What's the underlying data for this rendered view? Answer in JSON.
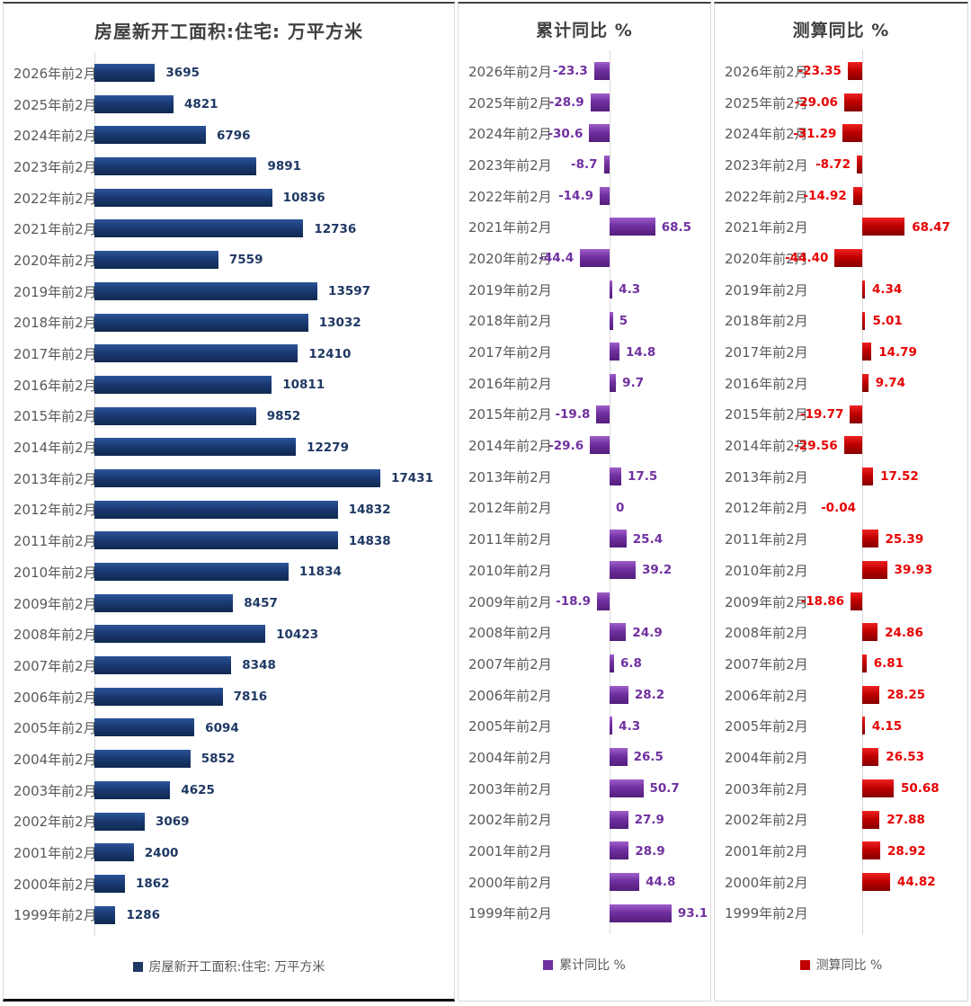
{
  "chart_data": [
    {
      "type": "bar",
      "orientation": "horizontal",
      "title": "房屋新开工面积:住宅: 万平方米",
      "legend": "房屋新开工面积:住宅: 万平方米",
      "categories": [
        "2026年前2月",
        "2025年前2月",
        "2024年前2月",
        "2023年前2月",
        "2022年前2月",
        "2021年前2月",
        "2020年前2月",
        "2019年前2月",
        "2018年前2月",
        "2017年前2月",
        "2016年前2月",
        "2015年前2月",
        "2014年前2月",
        "2013年前2月",
        "2012年前2月",
        "2011年前2月",
        "2010年前2月",
        "2009年前2月",
        "2008年前2月",
        "2007年前2月",
        "2006年前2月",
        "2005年前2月",
        "2004年前2月",
        "2003年前2月",
        "2002年前2月",
        "2001年前2月",
        "2000年前2月",
        "1999年前2月"
      ],
      "values": [
        3695,
        4821,
        6796,
        9891,
        10836,
        12736,
        7559,
        13597,
        13032,
        12410,
        10811,
        9852,
        12279,
        17431,
        14832,
        14838,
        11834,
        8457,
        10423,
        8348,
        7816,
        6094,
        5852,
        4625,
        3069,
        2400,
        1862,
        1286
      ],
      "labels": [
        "3695",
        "4821",
        "6796",
        "9891",
        "10836",
        "12736",
        "7559",
        "13597",
        "13032",
        "12410",
        "10811",
        "9852",
        "12279",
        "17431",
        "14832",
        "14838",
        "11834",
        "8457",
        "10423",
        "8348",
        "7816",
        "6094",
        "5852",
        "4625",
        "3069",
        "2400",
        "1862",
        "1286"
      ],
      "xlim": [
        0,
        19000
      ],
      "grid": false,
      "legend_position": "bottom",
      "colors": {
        "bar_light": "#2c5499",
        "bar": "#1a3a74",
        "bar_dark": "#10294f",
        "value_label": "#1f3864",
        "swatch": "#1f3864"
      }
    },
    {
      "type": "bar",
      "orientation": "horizontal",
      "title": "累计同比 %",
      "legend": "累计同比 %",
      "categories": [
        "2026年前2月",
        "2025年前2月",
        "2024年前2月",
        "2023年前2月",
        "2022年前2月",
        "2021年前2月",
        "2020年前2月",
        "2019年前2月",
        "2018年前2月",
        "2017年前2月",
        "2016年前2月",
        "2015年前2月",
        "2014年前2月",
        "2013年前2月",
        "2012年前2月",
        "2011年前2月",
        "2010年前2月",
        "2009年前2月",
        "2008年前2月",
        "2007年前2月",
        "2006年前2月",
        "2005年前2月",
        "2004年前2月",
        "2003年前2月",
        "2002年前2月",
        "2001年前2月",
        "2000年前2月",
        "1999年前2月"
      ],
      "values": [
        -23.3,
        -28.9,
        -30.6,
        -8.7,
        -14.9,
        68.5,
        -44.4,
        4.3,
        5,
        14.8,
        9.7,
        -19.8,
        -29.6,
        17.5,
        0,
        25.4,
        39.2,
        -18.9,
        24.9,
        6.8,
        28.2,
        4.3,
        26.5,
        50.7,
        27.9,
        28.9,
        44.8,
        93.1
      ],
      "labels": [
        "-23.3",
        "-28.9",
        "-30.6",
        "-8.7",
        "-14.9",
        "68.5",
        "-44.4",
        "4.3",
        "5",
        "14.8",
        "9.7",
        "-19.8",
        "-29.6",
        "17.5",
        "0",
        "25.4",
        "39.2",
        "-18.9",
        "24.9",
        "6.8",
        "28.2",
        "4.3",
        "26.5",
        "50.7",
        "27.9",
        "28.9",
        "44.8",
        "93.1"
      ],
      "xlim": [
        -90,
        150
      ],
      "grid": false,
      "legend_position": "bottom",
      "colors": {
        "bar_light": "#a05fc9",
        "bar": "#7030a0",
        "bar_dark": "#531e7b",
        "value_label": "#7030a0",
        "swatch": "#7030a0"
      }
    },
    {
      "type": "bar",
      "orientation": "horizontal",
      "title": "测算同比 %",
      "legend": "测算同比 %",
      "categories": [
        "2026年前2月",
        "2025年前2月",
        "2024年前2月",
        "2023年前2月",
        "2022年前2月",
        "2021年前2月",
        "2020年前2月",
        "2019年前2月",
        "2018年前2月",
        "2017年前2月",
        "2016年前2月",
        "2015年前2月",
        "2014年前2月",
        "2013年前2月",
        "2012年前2月",
        "2011年前2月",
        "2010年前2月",
        "2009年前2月",
        "2008年前2月",
        "2007年前2月",
        "2006年前2月",
        "2005年前2月",
        "2004年前2月",
        "2003年前2月",
        "2002年前2月",
        "2001年前2月",
        "2000年前2月",
        "1999年前2月"
      ],
      "values": [
        -23.35,
        -29.06,
        -31.29,
        -8.72,
        -14.92,
        68.47,
        -44.4,
        4.34,
        5.01,
        14.79,
        9.74,
        -19.77,
        -29.56,
        17.52,
        -0.04,
        25.39,
        39.93,
        -18.86,
        24.86,
        6.81,
        28.25,
        4.15,
        26.53,
        50.68,
        27.88,
        28.92,
        44.82,
        null
      ],
      "labels": [
        "-23.35",
        "-29.06",
        "-31.29",
        "-8.72",
        "-14.92",
        "68.47",
        "-44.40",
        "4.34",
        "5.01",
        "14.79",
        "9.74",
        "-19.77",
        "-29.56",
        "17.52",
        "-0.04",
        "25.39",
        "39.93",
        "-18.86",
        "24.86",
        "6.81",
        "28.25",
        "4.15",
        "26.53",
        "50.68",
        "27.88",
        "28.92",
        "44.82",
        ""
      ],
      "xlim": [
        -90,
        170
      ],
      "grid": false,
      "legend_position": "bottom",
      "colors": {
        "bar_light": "#f02222",
        "bar": "#c00000",
        "bar_dark": "#870000",
        "value_label": "#e80000",
        "swatch": "#c00000"
      }
    }
  ]
}
